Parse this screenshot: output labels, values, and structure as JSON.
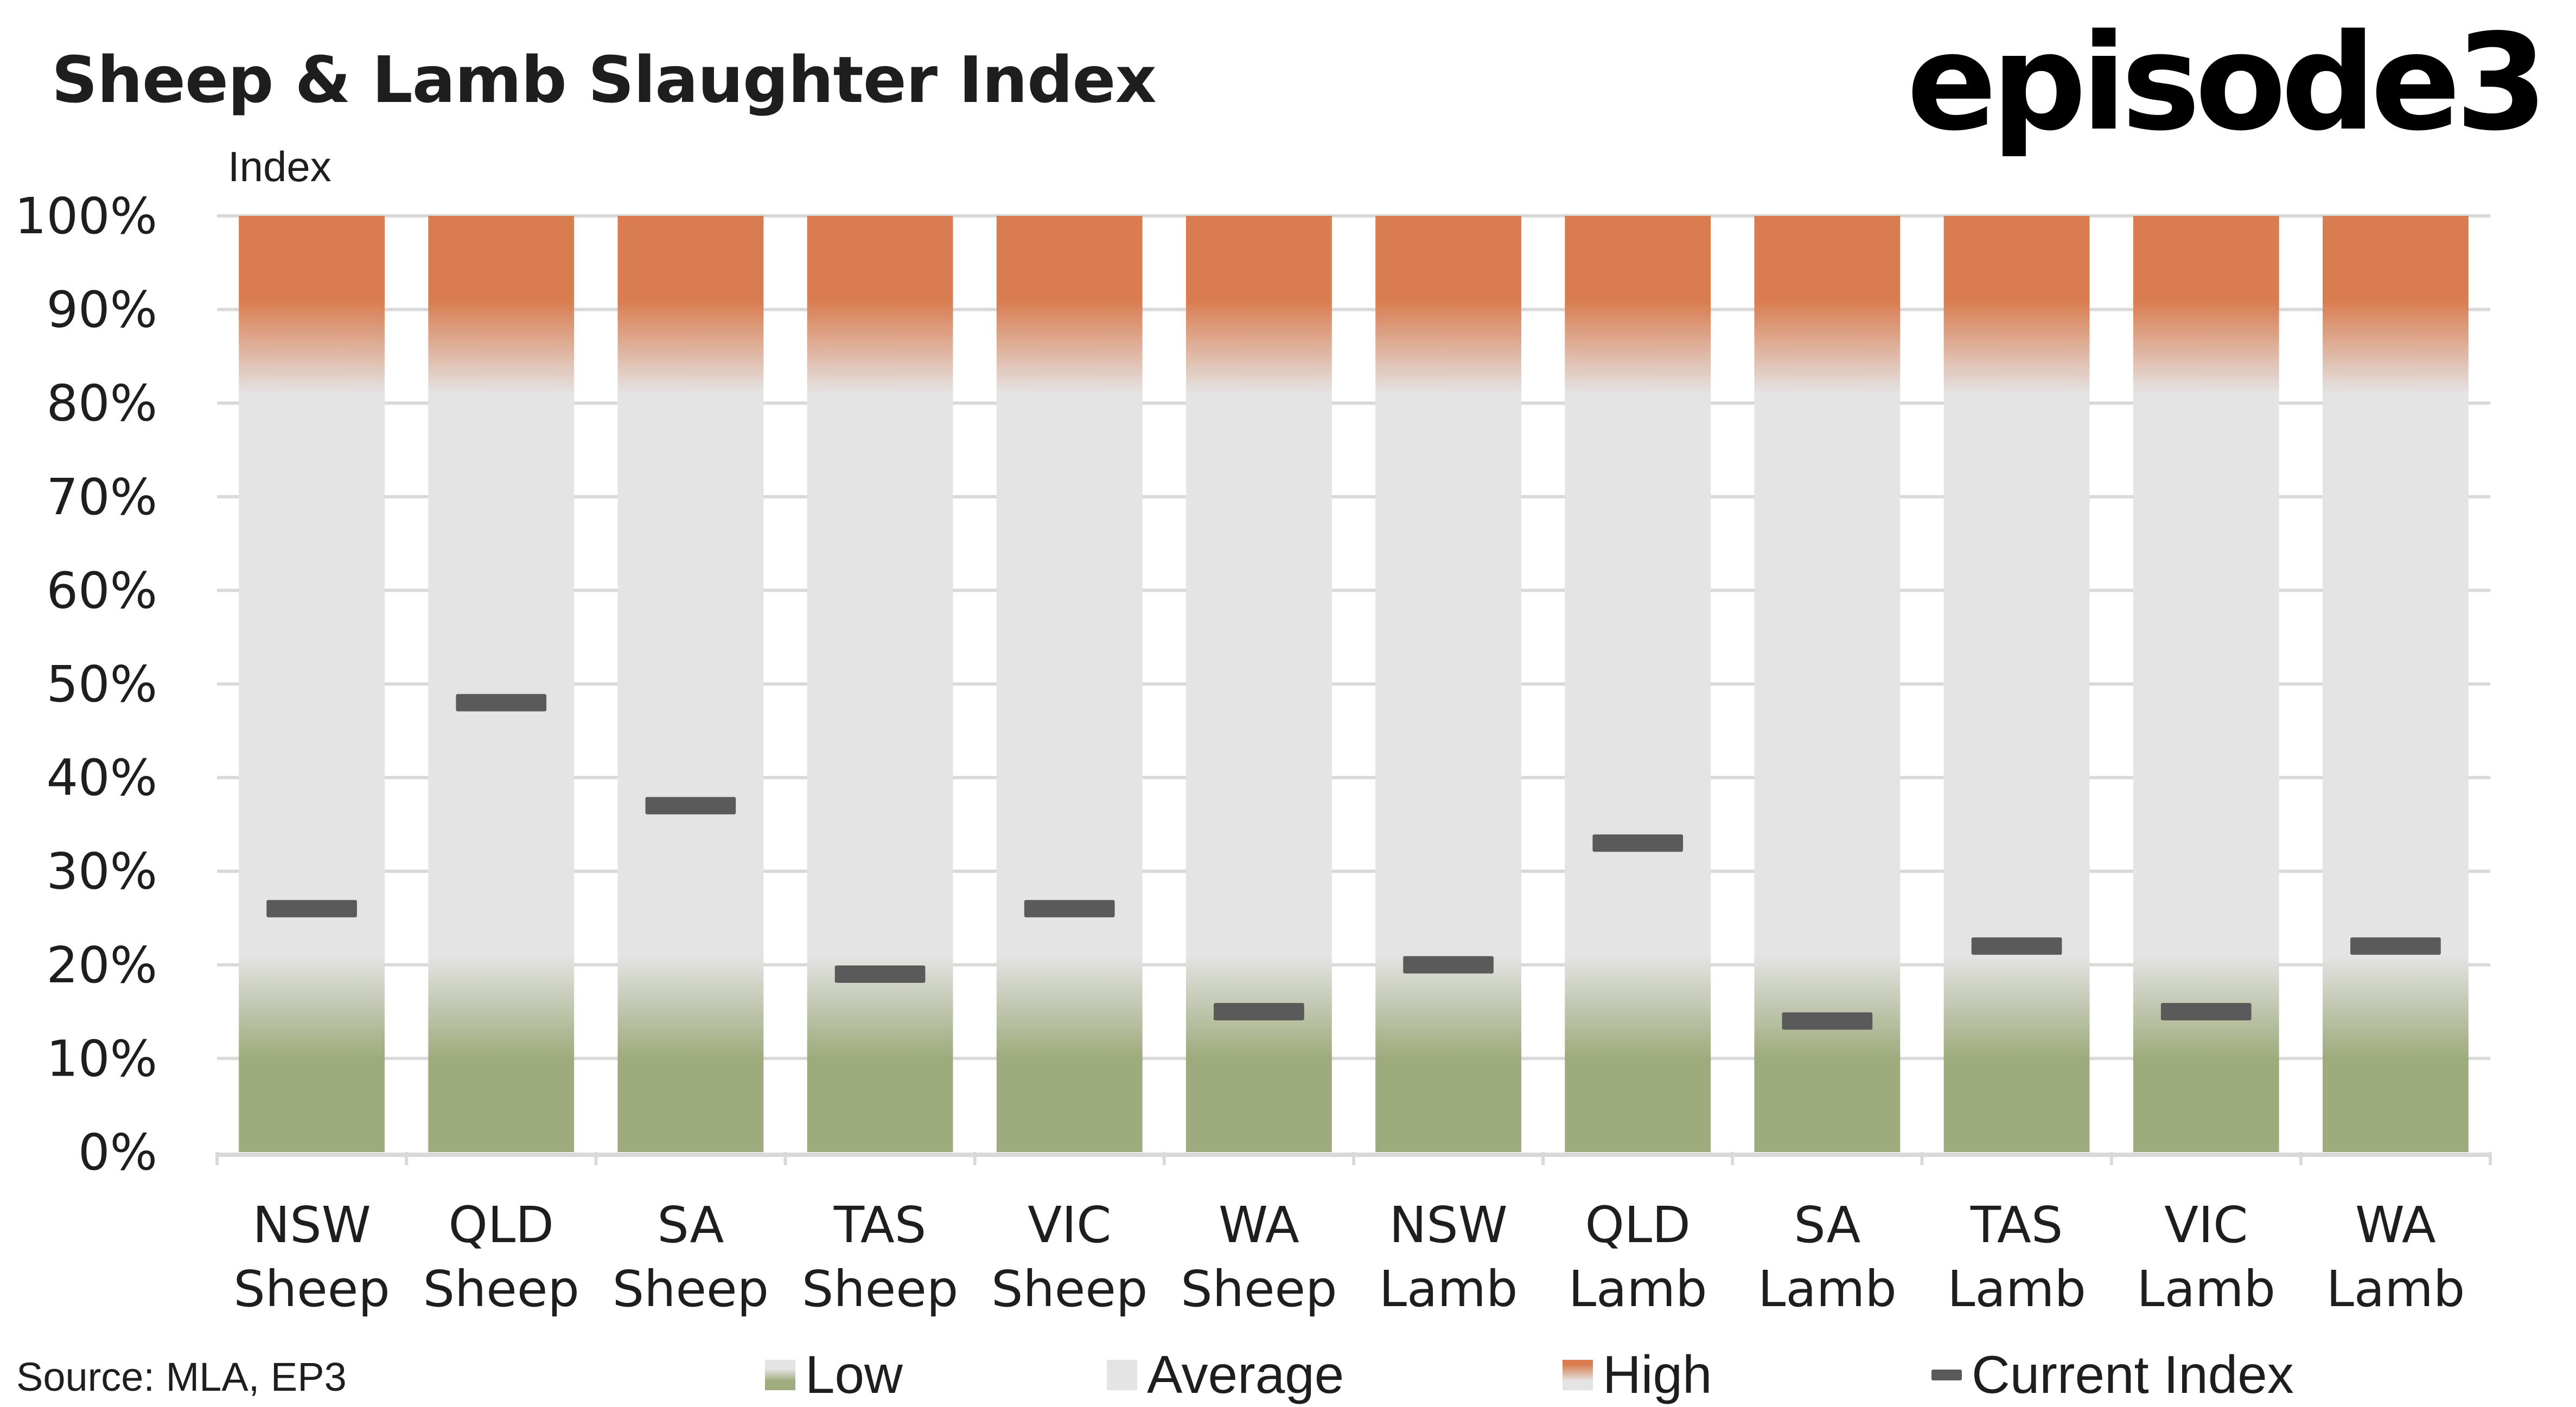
{
  "header": {
    "title": "Sheep & Lamb Slaughter Index",
    "logo": "episode3",
    "y_axis_label": "Index"
  },
  "footer": {
    "source": "Source: MLA, EP3"
  },
  "legend": [
    {
      "key": "low",
      "label": "Low"
    },
    {
      "key": "average",
      "label": "Average"
    },
    {
      "key": "high",
      "label": "High"
    },
    {
      "key": "current",
      "label": "Current Index"
    }
  ],
  "colors": {
    "high": "#d97c4f",
    "average": "#e4e4e4",
    "low": "#9eab7c",
    "current": "#5a5a5a",
    "grid": "#d9d9d9"
  },
  "chart_data": {
    "type": "bar",
    "title": "Sheep & Lamb Slaughter Index",
    "xlabel": "",
    "ylabel": "Index",
    "ylim": [
      0,
      100
    ],
    "y_ticks": [
      "0%",
      "10%",
      "20%",
      "30%",
      "40%",
      "50%",
      "60%",
      "70%",
      "80%",
      "90%",
      "100%"
    ],
    "grid": true,
    "legend_position": "bottom",
    "bands": [
      {
        "name": "Low",
        "from": 0,
        "to": 20
      },
      {
        "name": "Average",
        "from": 20,
        "to": 80
      },
      {
        "name": "High",
        "from": 80,
        "to": 100
      }
    ],
    "categories": [
      [
        "NSW",
        "Sheep"
      ],
      [
        "QLD",
        "Sheep"
      ],
      [
        "SA",
        "Sheep"
      ],
      [
        "TAS",
        "Sheep"
      ],
      [
        "VIC",
        "Sheep"
      ],
      [
        "WA",
        "Sheep"
      ],
      [
        "NSW",
        "Lamb"
      ],
      [
        "QLD",
        "Lamb"
      ],
      [
        "SA",
        "Lamb"
      ],
      [
        "TAS",
        "Lamb"
      ],
      [
        "VIC",
        "Lamb"
      ],
      [
        "WA",
        "Lamb"
      ]
    ],
    "series": [
      {
        "name": "Current Index",
        "values": [
          26,
          48,
          37,
          19,
          26,
          15,
          20,
          33,
          14,
          22,
          15,
          22
        ]
      }
    ]
  }
}
